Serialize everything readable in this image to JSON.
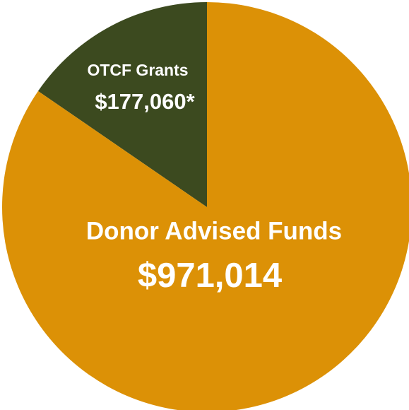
{
  "chart_data": {
    "type": "pie",
    "categories": [
      "OTCF Grants",
      "Donor Advised Funds"
    ],
    "values": [
      177060,
      971014
    ],
    "value_labels": [
      "$177,060*",
      "$971,014"
    ],
    "colors": [
      "#3c4a1f",
      "#dc9106"
    ]
  }
}
